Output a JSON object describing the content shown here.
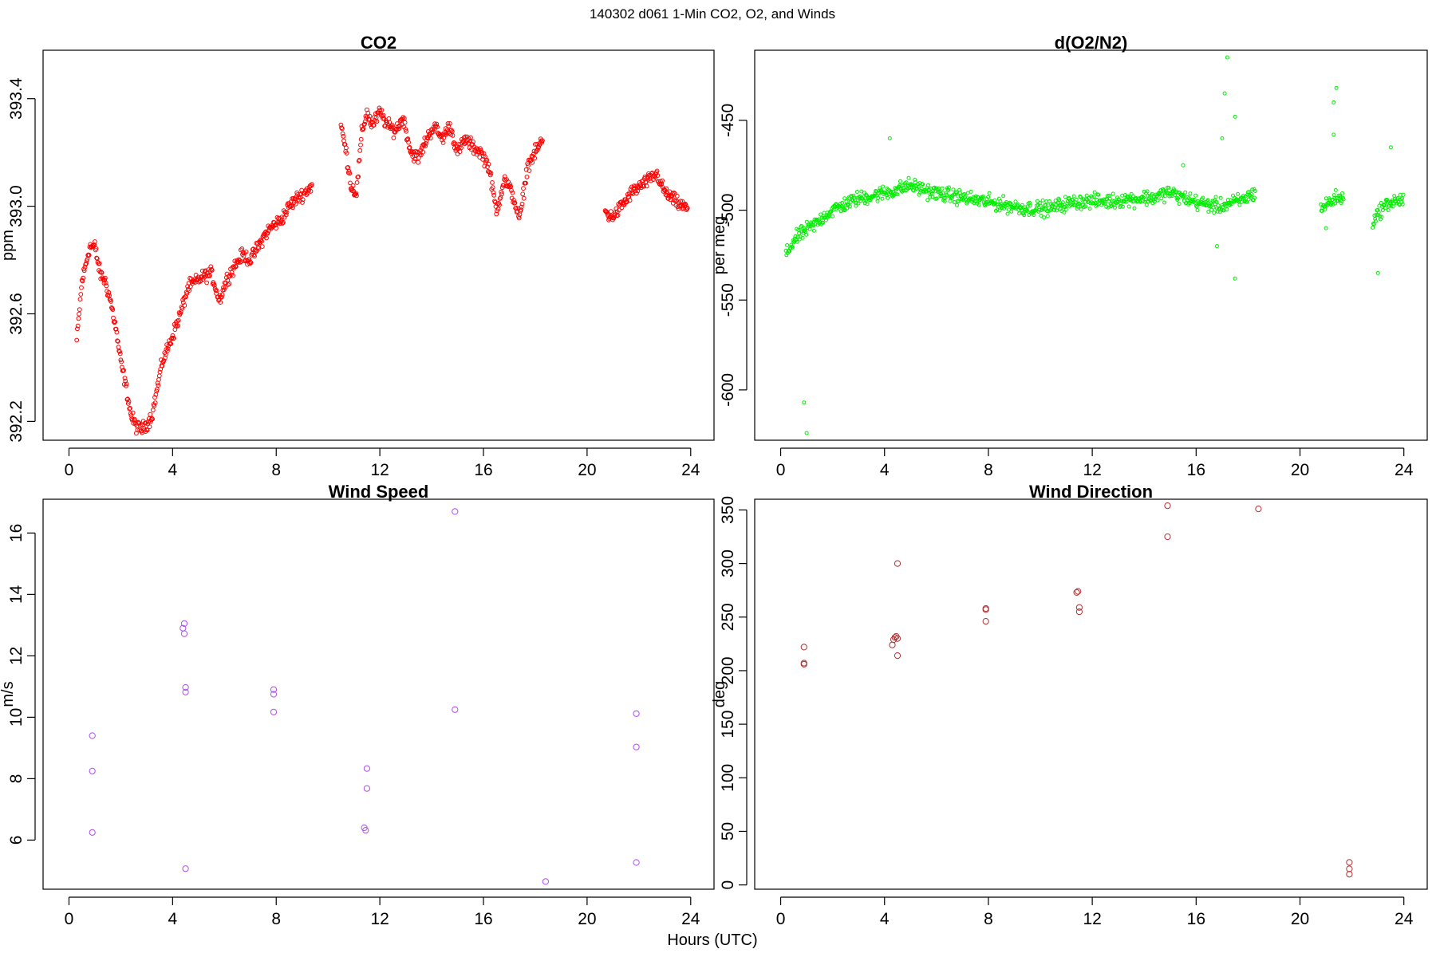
{
  "figure": {
    "suptitle": "140302   d061   1-Min CO2, O2, and Winds",
    "xlabel": "Hours (UTC)"
  },
  "chart_data": [
    {
      "id": "co2",
      "type": "scatter",
      "title": "CO2",
      "xlabel": "",
      "ylabel": "ppm",
      "xlim": [
        -1,
        24.9
      ],
      "ylim": [
        392.13,
        393.58
      ],
      "xticks": [
        0,
        4,
        8,
        12,
        16,
        20,
        24
      ],
      "yticks": [
        392.2,
        392.6,
        393.0,
        393.4
      ],
      "ytick_labels": [
        "392.2",
        "392.6",
        "393.0",
        "393.4"
      ],
      "color": "#ff0000",
      "marker_radius": 2.4,
      "noise": 0.035,
      "series": [
        {
          "x": [
            0.3,
            0.5,
            0.8,
            1.0,
            1.2,
            1.4,
            1.6,
            1.8,
            2.0,
            2.2,
            2.4,
            2.6,
            2.8,
            3.0,
            3.2,
            3.4,
            3.6,
            3.8,
            4.0,
            4.3,
            4.6,
            4.9,
            5.2,
            5.5,
            5.8,
            6.1,
            6.4,
            6.7,
            7.0,
            7.3,
            7.6,
            7.9,
            8.2,
            8.5,
            8.8,
            9.1,
            9.4,
            10.5,
            10.7,
            10.9,
            11.1,
            11.3,
            11.5,
            11.7,
            12.0,
            12.3,
            12.6,
            12.9,
            13.2,
            13.5,
            13.8,
            14.1,
            14.4,
            14.7,
            15.0,
            15.3,
            15.6,
            15.9,
            16.2,
            16.5,
            16.8,
            17.1,
            17.4,
            17.7,
            18.0,
            18.3,
            20.7,
            20.9,
            21.1,
            21.3,
            21.5,
            21.7,
            22.7,
            22.9,
            23.1,
            23.3,
            23.5,
            23.7,
            23.9
          ],
          "y": [
            392.5,
            392.72,
            392.85,
            392.85,
            392.75,
            392.72,
            392.65,
            392.55,
            392.42,
            392.33,
            392.22,
            392.18,
            392.17,
            392.19,
            392.22,
            392.32,
            392.42,
            392.47,
            392.52,
            392.6,
            392.7,
            392.72,
            392.74,
            392.75,
            392.65,
            392.73,
            392.78,
            392.82,
            392.8,
            392.85,
            392.9,
            392.93,
            392.95,
            393.0,
            393.03,
            393.05,
            393.08,
            393.3,
            393.2,
            393.07,
            393.05,
            393.27,
            393.35,
            393.3,
            393.35,
            393.3,
            393.28,
            393.33,
            393.2,
            393.18,
            393.25,
            393.3,
            393.25,
            393.3,
            393.2,
            393.25,
            393.22,
            393.2,
            393.15,
            392.98,
            393.1,
            393.05,
            392.95,
            393.15,
            393.2,
            393.25,
            392.98,
            392.96,
            392.97,
            393.0,
            393.02,
            393.05,
            393.12,
            393.07,
            393.04,
            393.03,
            393.01,
            393.0,
            392.99
          ]
        }
      ]
    },
    {
      "id": "o2",
      "type": "scatter",
      "title": "d(O2/N2)",
      "xlabel": "",
      "ylabel": "per meg",
      "xlim": [
        -1,
        24.9
      ],
      "ylim": [
        -628,
        -411
      ],
      "xticks": [
        0,
        4,
        8,
        12,
        16,
        20,
        24
      ],
      "yticks": [
        -600,
        -550,
        -500,
        -450
      ],
      "ytick_labels": [
        "-600",
        "-550",
        "-500",
        "-450"
      ],
      "color": "#00ee00",
      "marker_radius": 2.0,
      "noise": 6,
      "series": [
        {
          "x": [
            0.2,
            0.5,
            0.8,
            1.1,
            1.4,
            1.7,
            2.0,
            2.3,
            2.6,
            2.9,
            3.2,
            3.5,
            3.8,
            4.1,
            4.4,
            5.0,
            5.4,
            5.8,
            6.2,
            6.6,
            7.0,
            7.4,
            7.8,
            8.2,
            8.6,
            9.0,
            9.4,
            10.4,
            10.8,
            11.2,
            11.6,
            12.0,
            12.4,
            12.8,
            13.2,
            13.6,
            14.0,
            14.4,
            14.9,
            15.3,
            15.7,
            16.1,
            16.5,
            16.9,
            17.3,
            17.7,
            18.3,
            20.8,
            21.1,
            21.4,
            21.7,
            22.8,
            23.1,
            23.4,
            23.7,
            24.0
          ],
          "y": [
            -525,
            -517,
            -513,
            -510,
            -507,
            -503,
            -500,
            -498,
            -496,
            -494,
            -493,
            -492,
            -491,
            -490,
            -489,
            -486,
            -488,
            -490,
            -491,
            -492,
            -493,
            -494,
            -495,
            -496,
            -497,
            -498,
            -499,
            -499,
            -497,
            -496,
            -495,
            -495,
            -495,
            -495,
            -494,
            -494,
            -493,
            -493,
            -490,
            -492,
            -494,
            -496,
            -497,
            -498,
            -496,
            -495,
            -490,
            -499,
            -496,
            -493,
            -494,
            -506,
            -500,
            -496,
            -495,
            -494
          ],
          "outliers": [
            [
              0.9,
              -607
            ],
            [
              1.0,
              -624
            ],
            [
              17.2,
              -415
            ],
            [
              17.1,
              -435
            ],
            [
              17.5,
              -448
            ],
            [
              15.5,
              -475
            ],
            [
              16.8,
              -520
            ],
            [
              17.5,
              -538
            ],
            [
              21.0,
              -510
            ],
            [
              21.4,
              -432
            ],
            [
              21.3,
              -458
            ],
            [
              23.0,
              -535
            ],
            [
              23.5,
              -465
            ],
            [
              4.2,
              -460
            ],
            [
              17.0,
              -460
            ],
            [
              21.3,
              -440
            ]
          ]
        }
      ]
    },
    {
      "id": "ws",
      "type": "scatter",
      "title": "Wind Speed",
      "xlabel": "",
      "ylabel": "m/s",
      "xlim": [
        -1,
        24.9
      ],
      "ylim": [
        4.4,
        17.1
      ],
      "xticks": [
        0,
        4,
        8,
        12,
        16,
        20,
        24
      ],
      "yticks": [
        6,
        8,
        10,
        12,
        14,
        16
      ],
      "ytick_labels": [
        "6",
        "8",
        "10",
        "12",
        "14",
        "16"
      ],
      "color": "#b04cf0",
      "marker_radius": 3.6,
      "noise": 0,
      "series": [
        {
          "x": [
            0.9,
            0.9,
            0.9,
            4.4,
            4.45,
            4.45,
            4.5,
            4.5,
            4.5,
            7.9,
            7.9,
            7.9,
            11.4,
            11.45,
            11.5,
            11.5,
            14.9,
            14.9,
            18.4,
            21.9,
            21.9,
            21.9
          ],
          "y": [
            9.4,
            8.25,
            6.25,
            12.9,
            12.72,
            13.05,
            10.97,
            10.82,
            5.07,
            10.9,
            10.75,
            10.17,
            6.4,
            6.32,
            8.33,
            7.68,
            16.7,
            10.25,
            4.65,
            10.12,
            9.03,
            5.27
          ]
        }
      ]
    },
    {
      "id": "wd",
      "type": "scatter",
      "title": "Wind Direction",
      "xlabel": "",
      "ylabel": "deg",
      "xlim": [
        -1,
        24.9
      ],
      "ylim": [
        -4,
        360
      ],
      "xticks": [
        0,
        4,
        8,
        12,
        16,
        20,
        24
      ],
      "yticks": [
        0,
        50,
        100,
        150,
        200,
        250,
        300,
        350
      ],
      "ytick_labels": [
        "0",
        "50",
        "100",
        "150",
        "200",
        "250",
        "300",
        "350"
      ],
      "color": "#b03030",
      "marker_radius": 3.6,
      "noise": 0,
      "series": [
        {
          "x": [
            0.9,
            0.9,
            0.9,
            4.3,
            4.35,
            4.4,
            4.45,
            4.5,
            4.5,
            4.5,
            7.9,
            7.9,
            7.9,
            11.4,
            11.45,
            11.5,
            11.5,
            14.9,
            14.9,
            18.4,
            21.9,
            21.9,
            21.9
          ],
          "y": [
            206,
            207,
            222,
            224,
            229,
            231,
            232,
            230,
            214,
            300,
            258,
            257,
            246,
            273,
            274,
            259,
            255,
            354,
            325,
            351,
            21,
            15,
            10
          ]
        }
      ]
    }
  ]
}
